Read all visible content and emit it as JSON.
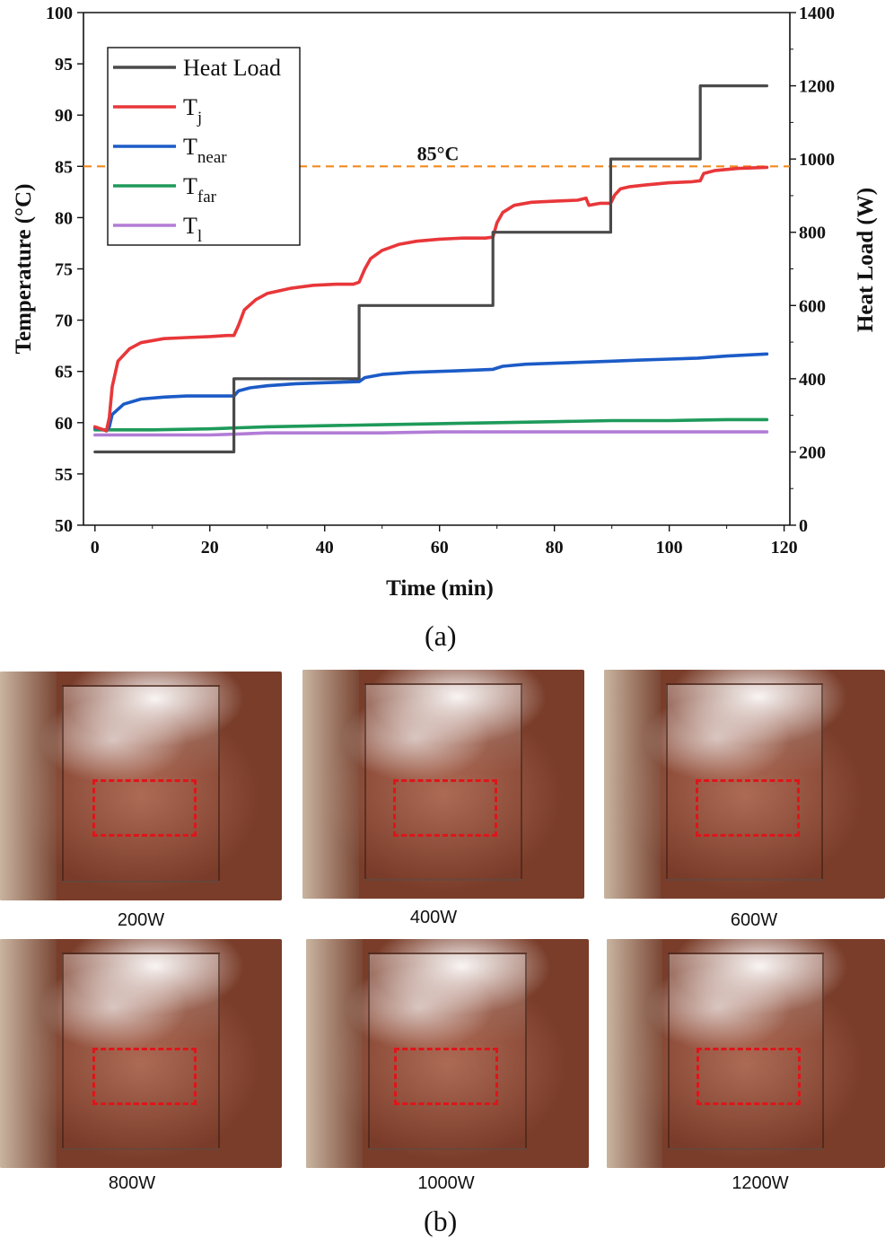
{
  "chart_data": {
    "type": "line",
    "panel_label": "(a)",
    "xlabel": "Time (min)",
    "ylabel_left": "Temperature (°C)",
    "ylabel_right": "Heat Load (W)",
    "xlim": [
      -2,
      121
    ],
    "ylim_left": [
      50,
      100
    ],
    "ylim_right": [
      0,
      1400
    ],
    "x_ticks": [
      "0",
      "20",
      "40",
      "60",
      "80",
      "100",
      "120"
    ],
    "y_left_ticks": [
      "50",
      "55",
      "60",
      "65",
      "70",
      "75",
      "80",
      "85",
      "90",
      "95",
      "100"
    ],
    "y_right_ticks": [
      "0",
      "200",
      "400",
      "600",
      "800",
      "1000",
      "1200",
      "1400"
    ],
    "reference_line": {
      "value": 85,
      "label": "85°C",
      "color": "#f28a1e"
    },
    "legend": [
      {
        "name": "Heat Load",
        "sub": "",
        "color": "#4a4a4a"
      },
      {
        "name": "T",
        "sub": "j",
        "color": "#e8373a"
      },
      {
        "name": "T",
        "sub": "near",
        "color": "#1c5bc7"
      },
      {
        "name": "T",
        "sub": "far",
        "color": "#1e9a5a"
      },
      {
        "name": "T",
        "sub": "l",
        "color": "#b27cd6"
      }
    ],
    "series": [
      {
        "name": "Heat Load",
        "axis": "right",
        "color": "#4a4a4a",
        "step": true,
        "x": [
          0,
          24.2,
          24.2,
          46,
          46,
          69.3,
          69.3,
          89.8,
          89.8,
          105.4,
          105.4,
          117
        ],
        "y": [
          200,
          200,
          400,
          400,
          600,
          600,
          800,
          800,
          1000,
          1000,
          1200,
          1200
        ]
      },
      {
        "name": "Tj",
        "axis": "left",
        "color": "#e8373a",
        "x": [
          0,
          1,
          2,
          2.5,
          3,
          4,
          6,
          8,
          12,
          16,
          20,
          23,
          24.2,
          25,
          26,
          28,
          30,
          34,
          38,
          42,
          45,
          46,
          47,
          48,
          50,
          53,
          56,
          60,
          64,
          68,
          69.3,
          70,
          71,
          73,
          76,
          80,
          84,
          85.5,
          86,
          88,
          89.8,
          90.5,
          91.5,
          93,
          96,
          100,
          104,
          105.4,
          106,
          108,
          112,
          117
        ],
        "y": [
          59.6,
          59.4,
          59.2,
          60.5,
          63.5,
          66,
          67.2,
          67.8,
          68.2,
          68.3,
          68.4,
          68.5,
          68.5,
          69.5,
          71,
          72,
          72.6,
          73.1,
          73.4,
          73.5,
          73.5,
          73.7,
          75,
          76,
          76.8,
          77.4,
          77.7,
          77.9,
          78,
          78,
          78.1,
          79.5,
          80.5,
          81.2,
          81.5,
          81.6,
          81.7,
          81.9,
          81.2,
          81.4,
          81.4,
          82.2,
          82.8,
          83,
          83.2,
          83.4,
          83.5,
          83.6,
          84.3,
          84.6,
          84.8,
          84.9
        ]
      },
      {
        "name": "Tnear",
        "axis": "left",
        "color": "#1c5bc7",
        "x": [
          0,
          1,
          2,
          2.5,
          3,
          5,
          8,
          12,
          16,
          20,
          24.2,
          25,
          27,
          30,
          35,
          40,
          46,
          47,
          50,
          55,
          60,
          65,
          69.3,
          71,
          75,
          80,
          85,
          90,
          95,
          100,
          105,
          110,
          117
        ],
        "y": [
          59.5,
          59.4,
          59.2,
          59.6,
          60.8,
          61.8,
          62.3,
          62.5,
          62.6,
          62.6,
          62.6,
          63.1,
          63.4,
          63.6,
          63.8,
          63.9,
          64.0,
          64.4,
          64.7,
          64.9,
          65.0,
          65.1,
          65.2,
          65.5,
          65.7,
          65.8,
          65.9,
          66.0,
          66.1,
          66.2,
          66.3,
          66.5,
          66.7
        ]
      },
      {
        "name": "Tfar",
        "axis": "left",
        "color": "#1e9a5a",
        "x": [
          0,
          5,
          10,
          20,
          25,
          30,
          40,
          50,
          60,
          70,
          80,
          90,
          100,
          110,
          117
        ],
        "y": [
          59.3,
          59.3,
          59.3,
          59.4,
          59.5,
          59.6,
          59.7,
          59.8,
          59.9,
          60.0,
          60.1,
          60.2,
          60.2,
          60.3,
          60.3
        ]
      },
      {
        "name": "Tl",
        "axis": "left",
        "color": "#b27cd6",
        "x": [
          0,
          5,
          10,
          20,
          25,
          30,
          40,
          50,
          60,
          70,
          80,
          90,
          100,
          110,
          117
        ],
        "y": [
          58.8,
          58.8,
          58.8,
          58.8,
          58.9,
          59.0,
          59.0,
          59.0,
          59.1,
          59.1,
          59.1,
          59.1,
          59.1,
          59.1,
          59.1
        ]
      }
    ]
  },
  "photos": {
    "panel_label": "(b)",
    "captions": [
      "200W",
      "400W",
      "600W",
      "800W",
      "1000W",
      "1200W"
    ]
  }
}
